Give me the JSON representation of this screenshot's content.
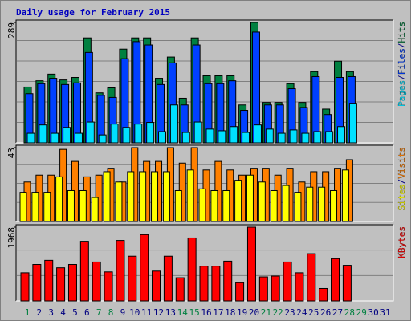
{
  "chart_data": {
    "type": "bar",
    "title": "Daily usage for February 2015",
    "title_color": "#0000c0",
    "categories": [
      "1",
      "2",
      "3",
      "4",
      "5",
      "6",
      "7",
      "8",
      "9",
      "10",
      "11",
      "12",
      "13",
      "14",
      "15",
      "16",
      "17",
      "18",
      "19",
      "20",
      "21",
      "22",
      "23",
      "24",
      "25",
      "26",
      "27",
      "28",
      "29",
      "30",
      "31"
    ],
    "category_colors": [
      "#008040",
      "#000080",
      "#000080",
      "#000080",
      "#000080",
      "#000080",
      "#008040",
      "#008040",
      "#000080",
      "#000080",
      "#000080",
      "#000080",
      "#000080",
      "#008040",
      "#008040",
      "#000080",
      "#000080",
      "#000080",
      "#000080",
      "#000080",
      "#008040",
      "#008040",
      "#000080",
      "#000080",
      "#000080",
      "#000080",
      "#000080",
      "#008040",
      "#008040",
      "#000080",
      "#000080"
    ],
    "legend_separator": "/",
    "grid": true,
    "panels": [
      {
        "ylim": [
          0,
          289
        ],
        "yticks": [
          289
        ],
        "series": [
          {
            "name": "Pages",
            "color": "#00e0ff",
            "values": [
              23,
              43,
              23,
              37,
              23,
              50,
              19,
              45,
              37,
              45,
              49,
              27,
              91,
              25,
              50,
              33,
              29,
              39,
              25,
              43,
              33,
              23,
              31,
              23,
              27,
              27,
              39,
              95,
              null,
              null,
              null
            ]
          },
          {
            "name": "Files",
            "color": "#0040ff",
            "values": [
              118,
              142,
              155,
              140,
              144,
              217,
              114,
              109,
              202,
              243,
              235,
              140,
              192,
              91,
              235,
              142,
              142,
              149,
              78,
              266,
              91,
              91,
              130,
              85,
              159,
              68,
              157,
              159,
              null,
              null,
              null
            ]
          },
          {
            "name": "Hits",
            "color": "#008040",
            "values": [
              134,
              149,
              165,
              151,
              157,
              252,
              120,
              132,
              225,
              252,
              252,
              155,
              206,
              107,
              252,
              161,
              161,
              161,
              91,
              289,
              97,
              97,
              142,
              97,
              171,
              81,
              196,
              171,
              null,
              null,
              null
            ]
          }
        ]
      },
      {
        "ylim": [
          0,
          43
        ],
        "yticks": [
          43
        ],
        "series": [
          {
            "name": "Sites",
            "color": "#ffff00",
            "values": [
              17,
              17,
              17,
              26,
              18,
              18,
              14,
              29,
              23,
              29,
              29,
              29,
              29,
              18,
              30,
              19,
              18,
              18,
              24,
              27,
              23,
              18,
              21,
              17,
              20,
              20,
              18,
              30,
              null,
              null,
              null
            ]
          },
          {
            "name": "Visits",
            "color": "#ff8000",
            "values": [
              23,
              27,
              27,
              42,
              35,
              26,
              27,
              31,
              23,
              43,
              35,
              35,
              43,
              34,
              43,
              30,
              35,
              30,
              27,
              31,
              31,
              27,
              31,
              23,
              29,
              29,
              31,
              36,
              null,
              null,
              null
            ]
          }
        ]
      },
      {
        "ylim": [
          0,
          1968
        ],
        "yticks": [
          1968
        ],
        "series": [
          {
            "name": "KBytes",
            "color": "#ff0000",
            "values": [
              751,
              973,
              1083,
              884,
              973,
              1591,
              1039,
              774,
              1613,
              1193,
              1768,
              796,
              1193,
              619,
              1680,
              928,
              928,
              1061,
              486,
              1968,
              641,
              663,
              1039,
              751,
              1260,
              332,
              1127,
              950,
              null,
              null,
              null
            ]
          }
        ]
      }
    ]
  }
}
